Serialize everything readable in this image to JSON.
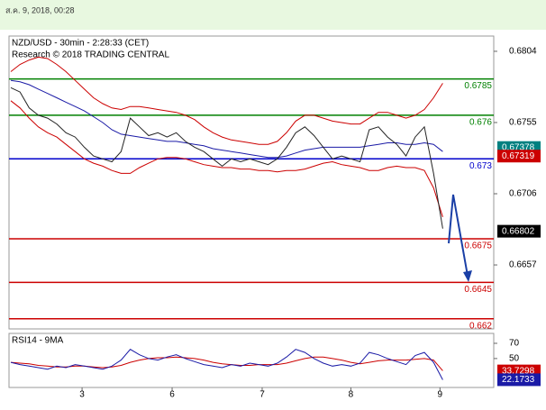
{
  "header": {
    "date": "ส.ค. 9, 2018, 00:28"
  },
  "chart_data": [
    {
      "type": "line",
      "title": "NZD/USD - 30min - 2:28:33 (CET)",
      "subtitle": "Research © 2018 TRADING CENTRAL",
      "x": [
        0,
        1,
        2,
        3,
        4,
        5,
        6,
        7,
        8,
        9,
        10,
        11,
        12,
        13,
        14,
        15,
        16,
        17,
        18,
        19,
        20,
        21,
        22,
        23,
        24,
        25,
        26,
        27,
        28,
        29,
        30,
        31,
        32,
        33,
        34,
        35,
        36,
        37,
        38,
        39,
        40,
        41,
        42,
        43,
        44,
        45,
        46,
        47
      ],
      "xlim": [
        -0.2,
        52.55
      ],
      "ylim": [
        0.6613,
        0.68145
      ],
      "yticks": [
        0.6804,
        0.6755,
        0.6706,
        0.6657
      ],
      "series": [
        {
          "color": "#cc0000",
          "values": [
            0.679,
            0.6795,
            0.6798,
            0.68,
            0.6799,
            0.6795,
            0.679,
            0.6784,
            0.6778,
            0.6772,
            0.6768,
            0.6765,
            0.6764,
            0.6766,
            0.6766,
            0.6765,
            0.6764,
            0.6763,
            0.6762,
            0.676,
            0.6757,
            0.6752,
            0.6748,
            0.6745,
            0.6743,
            0.6742,
            0.6741,
            0.674,
            0.674,
            0.6742,
            0.6748,
            0.6756,
            0.676,
            0.676,
            0.6758,
            0.6756,
            0.6755,
            0.6754,
            0.6754,
            0.6758,
            0.6762,
            0.6762,
            0.676,
            0.6758,
            0.676,
            0.6764,
            0.6772,
            0.6782
          ]
        },
        {
          "color": "#cc0000",
          "values": [
            0.677,
            0.6765,
            0.6758,
            0.6752,
            0.6748,
            0.6745,
            0.674,
            0.6735,
            0.673,
            0.6727,
            0.6725,
            0.6722,
            0.672,
            0.672,
            0.6724,
            0.6727,
            0.673,
            0.6731,
            0.6731,
            0.673,
            0.6728,
            0.6726,
            0.6725,
            0.6724,
            0.6724,
            0.6723,
            0.6723,
            0.6722,
            0.6722,
            0.6721,
            0.6722,
            0.6722,
            0.6723,
            0.6725,
            0.6727,
            0.6728,
            0.6726,
            0.6725,
            0.6724,
            0.6722,
            0.6722,
            0.6724,
            0.6725,
            0.6724,
            0.6724,
            0.6722,
            0.671,
            0.669
          ]
        },
        {
          "color": "#1a1aa6",
          "values": [
            0.6784,
            0.6783,
            0.6781,
            0.6778,
            0.6775,
            0.6772,
            0.6769,
            0.6766,
            0.6763,
            0.6759,
            0.6755,
            0.675,
            0.6747,
            0.6746,
            0.6745,
            0.6744,
            0.6743,
            0.6742,
            0.6742,
            0.6741,
            0.674,
            0.6739,
            0.6737,
            0.6736,
            0.6735,
            0.6734,
            0.6733,
            0.6732,
            0.6731,
            0.6731,
            0.6732,
            0.6734,
            0.6736,
            0.6737,
            0.6738,
            0.6738,
            0.6738,
            0.6738,
            0.6738,
            0.6739,
            0.674,
            0.6741,
            0.6741,
            0.674,
            0.674,
            0.6741,
            0.674,
            0.6735
          ]
        },
        {
          "color": "#222222",
          "values": [
            0.6779,
            0.6776,
            0.6765,
            0.676,
            0.6758,
            0.6754,
            0.6748,
            0.6745,
            0.6738,
            0.6732,
            0.673,
            0.6728,
            0.6735,
            0.6758,
            0.6752,
            0.6746,
            0.6748,
            0.6745,
            0.6748,
            0.6742,
            0.6738,
            0.6735,
            0.673,
            0.6725,
            0.673,
            0.6728,
            0.673,
            0.6728,
            0.6726,
            0.673,
            0.6738,
            0.6748,
            0.6752,
            0.6746,
            0.6738,
            0.673,
            0.6732,
            0.673,
            0.6728,
            0.675,
            0.6752,
            0.6745,
            0.674,
            0.6732,
            0.6745,
            0.6752,
            0.672,
            0.6682
          ]
        }
      ],
      "levels": [
        {
          "value": 0.6785,
          "color": "#008000"
        },
        {
          "value": 0.676,
          "color": "#008000"
        },
        {
          "value": 0.673,
          "color": "#0000cc"
        },
        {
          "value": 0.6675,
          "color": "#cc0000"
        },
        {
          "value": 0.6645,
          "color": "#cc0000"
        },
        {
          "value": 0.662,
          "color": "#cc0000"
        }
      ],
      "tags": [
        {
          "value": 0.67378,
          "color": "#008080"
        },
        {
          "value": 0.67319,
          "color": "#cc0000"
        },
        {
          "value": 0.66802,
          "color": "#000000"
        }
      ]
    },
    {
      "type": "line",
      "title": "RSI14 - 9MA",
      "x": [
        0,
        1,
        2,
        3,
        4,
        5,
        6,
        7,
        8,
        9,
        10,
        11,
        12,
        13,
        14,
        15,
        16,
        17,
        18,
        19,
        20,
        21,
        22,
        23,
        24,
        25,
        26,
        27,
        28,
        29,
        30,
        31,
        32,
        33,
        34,
        35,
        36,
        37,
        38,
        39,
        40,
        41,
        42,
        43,
        44,
        45,
        46,
        47
      ],
      "xlim": [
        -0.2,
        52.55
      ],
      "xticks": [
        {
          "value": 7.75,
          "label": "3"
        },
        {
          "value": 17.55,
          "label": "6"
        },
        {
          "value": 27.35,
          "label": "7"
        },
        {
          "value": 37,
          "label": "8"
        },
        {
          "value": 46.7,
          "label": "9"
        }
      ],
      "ylim": [
        12,
        83
      ],
      "yticks": [
        70,
        50
      ],
      "series": [
        {
          "color": "#cc0000",
          "values": [
            45,
            44,
            43,
            41,
            40,
            39,
            39,
            40,
            40,
            39,
            38,
            39,
            41,
            45,
            48,
            50,
            51,
            51,
            52,
            51,
            50,
            48,
            45,
            43,
            42,
            41,
            41,
            42,
            42,
            42,
            44,
            47,
            50,
            52,
            52,
            50,
            48,
            45,
            43,
            45,
            47,
            48,
            48,
            48,
            49,
            50,
            48,
            34
          ]
        },
        {
          "color": "#1a1aa6",
          "values": [
            45,
            42,
            40,
            38,
            36,
            40,
            38,
            42,
            40,
            38,
            36,
            40,
            48,
            62,
            55,
            50,
            48,
            52,
            55,
            50,
            46,
            42,
            40,
            38,
            42,
            40,
            44,
            42,
            40,
            44,
            52,
            62,
            58,
            50,
            44,
            40,
            42,
            40,
            44,
            58,
            55,
            50,
            46,
            42,
            54,
            58,
            45,
            22
          ]
        }
      ],
      "tags": [
        {
          "value": 33.7298,
          "color": "#cc0000"
        },
        {
          "value": 22.1733,
          "color": "#1a1aa6"
        }
      ]
    }
  ]
}
